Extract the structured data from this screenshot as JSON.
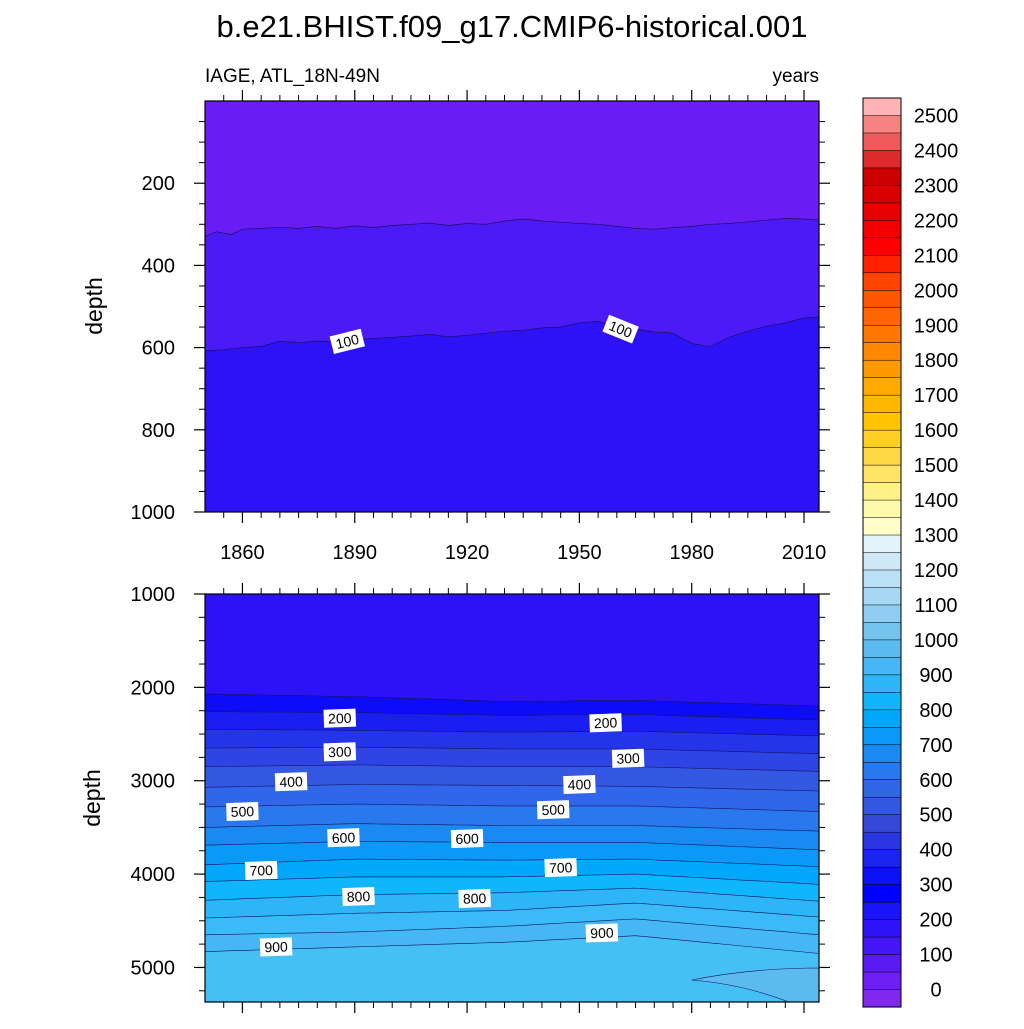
{
  "title": "b.e21.BHIST.f09_g17.CMIP6-historical.001",
  "chart_data": [
    {
      "type": "contour",
      "panel": "upper",
      "left_label": "IAGE, ATL_18N-49N",
      "right_label": "years",
      "ylabel": "depth",
      "xlabel": "",
      "xlim": [
        1850,
        2014
      ],
      "ylim": [
        0,
        1000
      ],
      "yticks": [
        200,
        400,
        600,
        800,
        1000
      ],
      "xticks": [
        1860,
        1890,
        1920,
        1950,
        1980,
        2010
      ],
      "contour_lines": [
        {
          "name": "50",
          "x": [
            1850,
            1853,
            1857,
            1860,
            1865,
            1870,
            1875,
            1880,
            1885,
            1890,
            1895,
            1900,
            1905,
            1910,
            1915,
            1920,
            1925,
            1930,
            1935,
            1940,
            1945,
            1950,
            1955,
            1960,
            1965,
            1970,
            1975,
            1980,
            1985,
            1990,
            1995,
            2000,
            2005,
            2010,
            2014
          ],
          "y": [
            330,
            318,
            325,
            312,
            310,
            307,
            310,
            305,
            310,
            304,
            308,
            303,
            300,
            297,
            303,
            298,
            300,
            292,
            287,
            292,
            295,
            298,
            300,
            305,
            310,
            312,
            308,
            305,
            300,
            298,
            294,
            290,
            286,
            287,
            290
          ]
        },
        {
          "name": "100",
          "x": [
            1850,
            1855,
            1860,
            1865,
            1870,
            1875,
            1880,
            1885,
            1890,
            1895,
            1900,
            1905,
            1910,
            1915,
            1920,
            1925,
            1930,
            1935,
            1940,
            1945,
            1950,
            1955,
            1960,
            1965,
            1970,
            1975,
            1980,
            1985,
            1990,
            1995,
            2000,
            2005,
            2010,
            2014
          ],
          "y": [
            608,
            605,
            600,
            597,
            585,
            588,
            584,
            586,
            580,
            578,
            575,
            572,
            568,
            574,
            570,
            565,
            560,
            558,
            552,
            550,
            540,
            536,
            548,
            555,
            562,
            565,
            590,
            598,
            575,
            560,
            548,
            540,
            528,
            525
          ]
        }
      ],
      "fill_levels": [
        {
          "below": 50,
          "color": "#6a1cf4"
        },
        {
          "between": [
            50,
            100
          ],
          "color": "#4c1af6"
        },
        {
          "above": 100,
          "color": "#2d12f8"
        }
      ],
      "labels": [
        {
          "text": "100",
          "x": 1888,
          "y": 585
        },
        {
          "text": "100",
          "x": 1961,
          "y": 555
        }
      ]
    },
    {
      "type": "contour",
      "panel": "lower",
      "ylabel": "depth",
      "xlim": [
        1850,
        2014
      ],
      "ylim": [
        1000,
        5370
      ],
      "yticks": [
        1000,
        2000,
        3000,
        4000,
        5000
      ],
      "xticks": [
        1860,
        1890,
        1920,
        1950,
        1980,
        2010
      ],
      "levels": [
        200,
        250,
        300,
        350,
        400,
        450,
        500,
        550,
        600,
        650,
        700,
        750,
        800,
        850,
        900
      ],
      "level_depths": [
        [
          2070,
          2100,
          2150,
          2140,
          2200
        ],
        [
          2260,
          2270,
          2300,
          2290,
          2350
        ],
        [
          2450,
          2460,
          2480,
          2470,
          2520
        ],
        [
          2650,
          2640,
          2660,
          2660,
          2710
        ],
        [
          2850,
          2830,
          2850,
          2850,
          2900
        ],
        [
          3070,
          3040,
          3050,
          3060,
          3110
        ],
        [
          3280,
          3250,
          3270,
          3270,
          3330
        ],
        [
          3500,
          3460,
          3480,
          3480,
          3540
        ],
        [
          3690,
          3650,
          3660,
          3660,
          3740
        ],
        [
          3900,
          3840,
          3850,
          3840,
          3920
        ],
        [
          4080,
          4030,
          4030,
          4000,
          4110
        ],
        [
          4280,
          4220,
          4200,
          4150,
          4290
        ],
        [
          4470,
          4420,
          4390,
          4310,
          4460
        ],
        [
          4650,
          4620,
          4560,
          4480,
          4650
        ],
        [
          4830,
          4780,
          4730,
          4660,
          4850
        ]
      ],
      "level_x": [
        1850,
        1890,
        1930,
        1965,
        2014
      ],
      "labels": [
        {
          "text": "200",
          "x": 1886,
          "y": 2330
        },
        {
          "text": "200",
          "x": 1957,
          "y": 2380
        },
        {
          "text": "300",
          "x": 1886,
          "y": 2690
        },
        {
          "text": "300",
          "x": 1963,
          "y": 2760
        },
        {
          "text": "400",
          "x": 1873,
          "y": 3010
        },
        {
          "text": "400",
          "x": 1950,
          "y": 3040
        },
        {
          "text": "500",
          "x": 1860,
          "y": 3330
        },
        {
          "text": "500",
          "x": 1943,
          "y": 3310
        },
        {
          "text": "600",
          "x": 1887,
          "y": 3610
        },
        {
          "text": "600",
          "x": 1920,
          "y": 3620
        },
        {
          "text": "700",
          "x": 1865,
          "y": 3960
        },
        {
          "text": "700",
          "x": 1945,
          "y": 3930
        },
        {
          "text": "800",
          "x": 1891,
          "y": 4240
        },
        {
          "text": "800",
          "x": 1922,
          "y": 4260
        },
        {
          "text": "900",
          "x": 1869,
          "y": 4780
        },
        {
          "text": "900",
          "x": 1956,
          "y": 4630
        }
      ]
    }
  ],
  "colorbar": {
    "labels": [
      "2500",
      "2400",
      "2300",
      "2200",
      "2100",
      "2000",
      "1900",
      "1800",
      "1700",
      "1600",
      "1500",
      "1400",
      "1300",
      "1200",
      "1100",
      "1000",
      "900",
      "800",
      "700",
      "600",
      "500",
      "400",
      "300",
      "200",
      "100",
      "0"
    ],
    "colors_top_to_bottom": [
      "#ffb3b3",
      "#f78282",
      "#ee5a5a",
      "#dd2b2b",
      "#cc0000",
      "#d90000",
      "#e60000",
      "#f20000",
      "#ff0000",
      "#ff2200",
      "#ff4400",
      "#ff5500",
      "#ff6600",
      "#ff7700",
      "#ff8800",
      "#ff9900",
      "#ffaa00",
      "#ffb800",
      "#ffc400",
      "#ffcf22",
      "#ffd944",
      "#ffe466",
      "#fff188",
      "#fffaaa",
      "#fffdc8",
      "#e4f2fb",
      "#cfe8f8",
      "#bae0f6",
      "#a6d8f4",
      "#8fcdf2",
      "#74c3ef",
      "#5bbaee",
      "#44b7f4",
      "#2cb6f8",
      "#10b6fc",
      "#00a8fb",
      "#0a99f6",
      "#1a8af2",
      "#2a78ee",
      "#3066ea",
      "#3458e2",
      "#3548d8",
      "#2a36e4",
      "#1a24ee",
      "#0d12f6",
      "#0000ff",
      "#1a14fa",
      "#2e12f8",
      "#4516f6",
      "#5a1af4",
      "#6e20f2",
      "#8028ee"
    ]
  }
}
